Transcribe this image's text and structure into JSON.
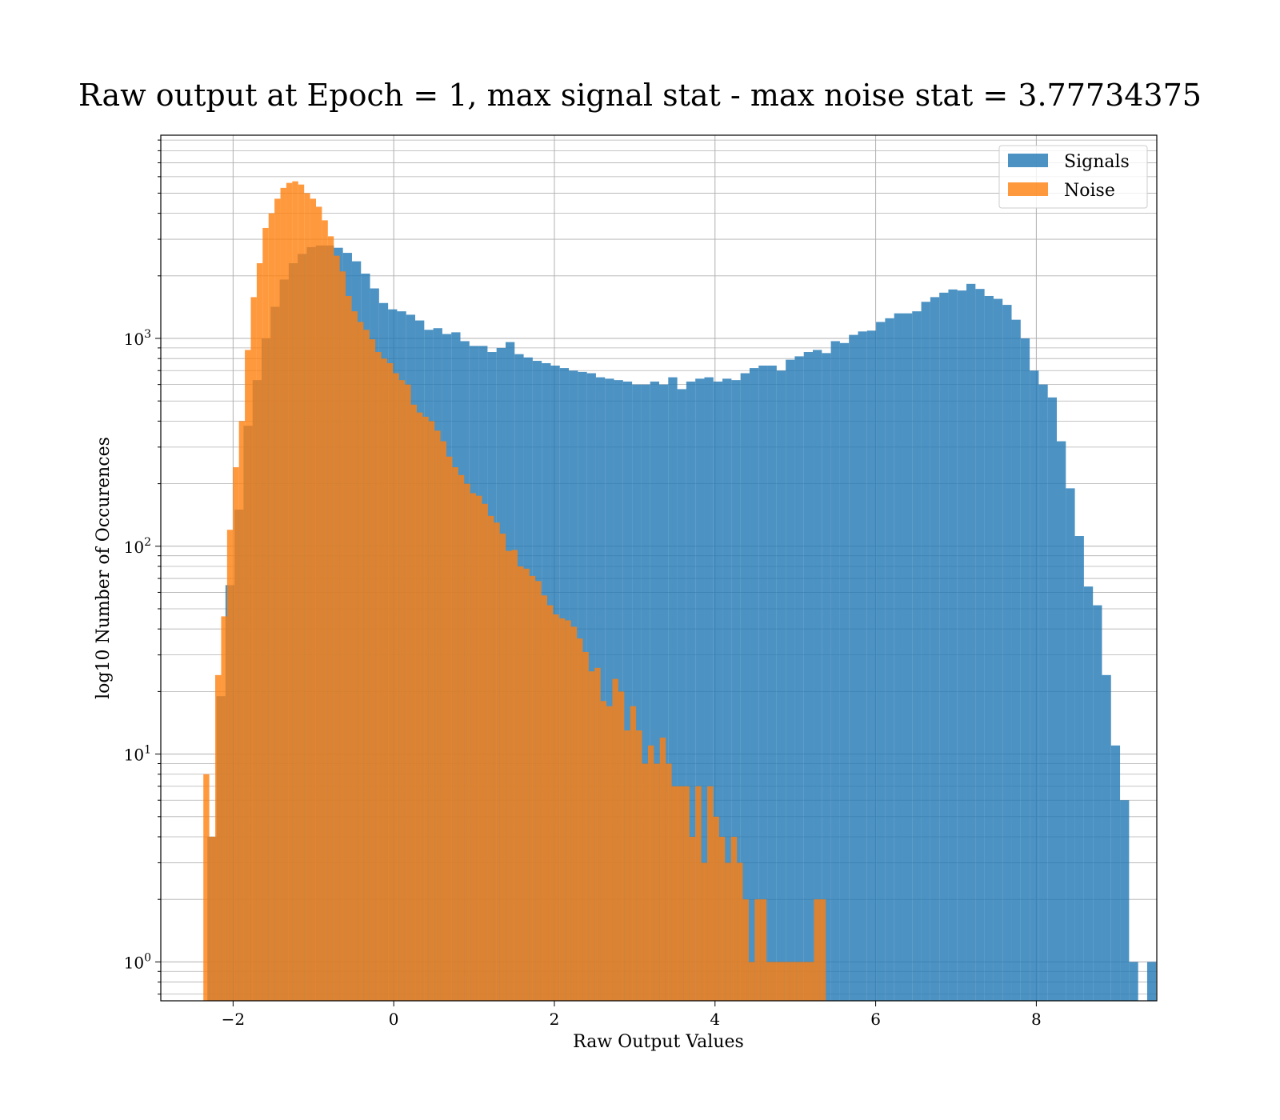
{
  "chart_data": {
    "type": "bar",
    "title": "Raw output at Epoch = 1, max signal stat - max noise stat = 3.77734375",
    "xlabel": "Raw Output Values",
    "ylabel": "log10 Number of Occurences",
    "xlim": [
      -2.9,
      9.5
    ],
    "ylim": [
      0.65,
      9500
    ],
    "yscale": "log",
    "grid": true,
    "legend_position": "top-right",
    "x_ticks": [
      -2,
      0,
      2,
      4,
      6,
      8
    ],
    "x_tick_labels": [
      "−2",
      "0",
      "2",
      "4",
      "6",
      "8"
    ],
    "y_ticks": [
      1,
      10,
      100,
      1000
    ],
    "y_tick_labels": [
      {
        "base": "10",
        "exp": "0"
      },
      {
        "base": "10",
        "exp": "1"
      },
      {
        "base": "10",
        "exp": "2"
      },
      {
        "base": "10",
        "exp": "3"
      }
    ],
    "series": [
      {
        "name": "Signals",
        "color": "#1f77b4",
        "opacity": 0.8,
        "bin_start": -2.32,
        "bin_width": 0.1125,
        "values": [
          4,
          19,
          65,
          150,
          380,
          630,
          1000,
          1420,
          1920,
          2300,
          2550,
          2750,
          2800,
          2800,
          2730,
          2580,
          2350,
          2050,
          1740,
          1480,
          1380,
          1350,
          1300,
          1220,
          1100,
          1120,
          1050,
          1070,
          970,
          920,
          920,
          860,
          900,
          960,
          840,
          810,
          780,
          760,
          740,
          720,
          700,
          690,
          680,
          650,
          640,
          630,
          620,
          600,
          600,
          620,
          600,
          650,
          570,
          620,
          640,
          650,
          620,
          640,
          630,
          680,
          720,
          740,
          740,
          700,
          790,
          820,
          860,
          880,
          850,
          970,
          950,
          1040,
          1080,
          1090,
          1200,
          1250,
          1320,
          1320,
          1350,
          1500,
          1580,
          1660,
          1720,
          1700,
          1830,
          1730,
          1600,
          1550,
          1450,
          1230,
          1000,
          700,
          600,
          520,
          320,
          190,
          112,
          64,
          52,
          24,
          11,
          6,
          1,
          0,
          1
        ]
      },
      {
        "name": "Noise",
        "color": "#ff7f0e",
        "opacity": 0.8,
        "bin_start": -2.37,
        "bin_width": 0.0738,
        "values": [
          8,
          4,
          24,
          46,
          120,
          240,
          400,
          880,
          1580,
          2300,
          3400,
          4000,
          4700,
          5300,
          5600,
          5700,
          5500,
          5000,
          4700,
          4300,
          3700,
          3100,
          2500,
          2100,
          1600,
          1350,
          1200,
          1100,
          990,
          860,
          800,
          760,
          680,
          630,
          600,
          480,
          440,
          420,
          400,
          360,
          320,
          270,
          240,
          220,
          200,
          180,
          175,
          160,
          140,
          130,
          115,
          95,
          96,
          80,
          78,
          72,
          68,
          58,
          52,
          47,
          45,
          44,
          41,
          36,
          31,
          25,
          26,
          18,
          17,
          23,
          20,
          13,
          17,
          13,
          9,
          11,
          9,
          12,
          9,
          7,
          7,
          7,
          4,
          7,
          3,
          7,
          5,
          4,
          3,
          4,
          3,
          2,
          1,
          2,
          2,
          1,
          1,
          1,
          1,
          1,
          1,
          1,
          1,
          2,
          2
        ]
      }
    ]
  }
}
